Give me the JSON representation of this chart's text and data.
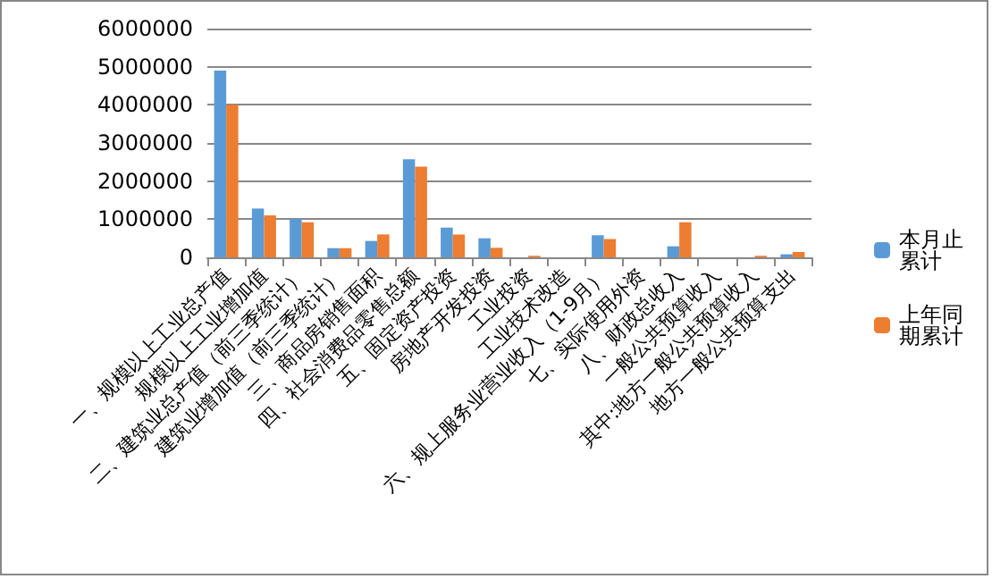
{
  "chart_data": {
    "type": "bar",
    "categories": [
      "一、规模以上工业总产值",
      "规模以上工业增加值",
      "二、建筑业总产值（前三季统计）",
      "建筑业增加值（前三季统计）",
      "三、商品房销售面积",
      "四、社会消费品零售总额",
      "五、固定资产投资",
      "房地产开发投资",
      "工业投资",
      "工业技术改造",
      "六、规上服务业营业收入（1-9月）",
      "七、实际使用外资",
      "八、财政总收入",
      "一般公共预算收入",
      "其中:地方一般公共预算收入",
      "地方一般公共预算支出"
    ],
    "series": [
      {
        "name": "本月止累计",
        "color": "#5b9bd5",
        "values": [
          4900000,
          1280000,
          1000000,
          240000,
          430000,
          2570000,
          780000,
          500000,
          0,
          null,
          580000,
          null,
          290000,
          null,
          0,
          80000
        ]
      },
      {
        "name": "上年同期累计",
        "color": "#ed7d31",
        "values": [
          4000000,
          1100000,
          920000,
          240000,
          600000,
          2380000,
          600000,
          250000,
          40000,
          null,
          480000,
          null,
          920000,
          null,
          40000,
          140000
        ]
      }
    ],
    "ylim": [
      0,
      6000000
    ],
    "yticks": [
      0,
      1000000,
      2000000,
      3000000,
      4000000,
      5000000,
      6000000
    ],
    "grid": "y",
    "legend": "right"
  }
}
